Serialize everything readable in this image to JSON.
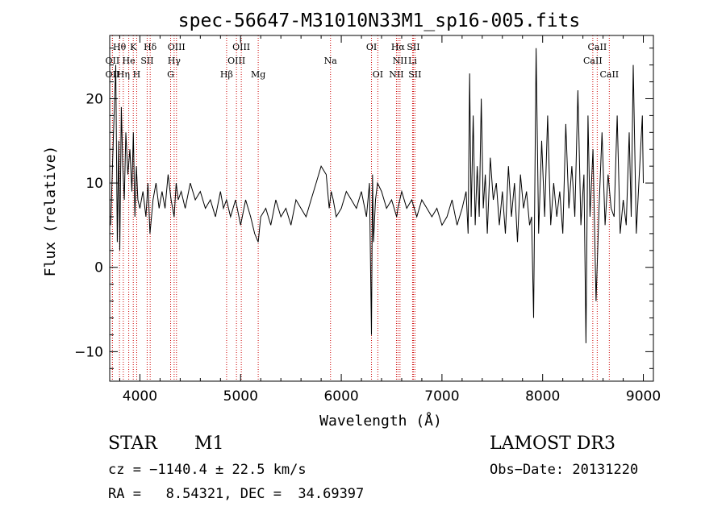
{
  "chart_data": {
    "type": "line",
    "title": "spec-56647-M31010N33M1_sp16-005.fits",
    "xlabel": "Wavelength (Å)",
    "ylabel": "Flux (relative)",
    "xlim": [
      3700,
      9100
    ],
    "ylim": [
      -13.5,
      27.5
    ],
    "xticks": [
      4000,
      5000,
      6000,
      7000,
      8000,
      9000
    ],
    "yticks": [
      -10,
      0,
      10,
      20
    ],
    "xtick_labels": [
      "4000",
      "5000",
      "6000",
      "7000",
      "8000",
      "9000"
    ],
    "ytick_labels": [
      "−10",
      "0",
      "10",
      "20"
    ],
    "line_color": "#000000",
    "marker_color": "#cc0000",
    "spectrum": {
      "x": [
        3710,
        3735,
        3760,
        3775,
        3790,
        3800,
        3815,
        3830,
        3845,
        3860,
        3880,
        3900,
        3920,
        3935,
        3950,
        3965,
        3980,
        4000,
        4030,
        4060,
        4080,
        4100,
        4130,
        4160,
        4190,
        4220,
        4250,
        4280,
        4310,
        4340,
        4360,
        4380,
        4410,
        4450,
        4500,
        4550,
        4600,
        4650,
        4700,
        4750,
        4800,
        4830,
        4860,
        4900,
        4950,
        5000,
        5050,
        5100,
        5140,
        5175,
        5200,
        5250,
        5300,
        5350,
        5400,
        5450,
        5500,
        5550,
        5600,
        5650,
        5700,
        5750,
        5800,
        5850,
        5880,
        5900,
        5920,
        5950,
        6000,
        6050,
        6100,
        6150,
        6200,
        6250,
        6280,
        6300,
        6310,
        6320,
        6340,
        6360,
        6400,
        6450,
        6500,
        6550,
        6563,
        6600,
        6650,
        6700,
        6750,
        6800,
        6850,
        6900,
        6950,
        7000,
        7050,
        7100,
        7150,
        7200,
        7240,
        7260,
        7275,
        7290,
        7310,
        7330,
        7350,
        7370,
        7390,
        7410,
        7430,
        7450,
        7480,
        7510,
        7540,
        7570,
        7600,
        7630,
        7660,
        7690,
        7720,
        7750,
        7780,
        7810,
        7840,
        7870,
        7890,
        7910,
        7935,
        7960,
        7990,
        8020,
        8050,
        8080,
        8110,
        8140,
        8170,
        8200,
        8230,
        8260,
        8290,
        8320,
        8350,
        8380,
        8410,
        8430,
        8450,
        8470,
        8500,
        8530,
        8560,
        8590,
        8620,
        8650,
        8680,
        8710,
        8740,
        8770,
        8800,
        8830,
        8860,
        8880,
        8900,
        8930,
        8960,
        8990,
        9000
      ],
      "y": [
        5,
        15,
        24,
        3,
        15,
        2,
        19,
        12,
        8,
        16,
        11,
        14,
        9,
        16,
        6,
        12,
        8,
        7,
        9,
        6,
        10,
        4,
        8,
        10,
        7,
        9,
        7,
        11,
        8,
        6,
        10,
        8,
        9,
        7,
        10,
        8,
        9,
        7,
        8,
        6,
        9,
        7,
        8,
        6,
        8,
        5,
        8,
        6,
        4,
        3,
        6,
        7,
        5,
        8,
        6,
        7,
        5,
        8,
        7,
        6,
        8,
        10,
        12,
        11,
        7,
        9,
        8,
        6,
        7,
        9,
        8,
        7,
        9,
        6,
        10,
        -8,
        11,
        3,
        8,
        10,
        9,
        7,
        8,
        6,
        7,
        9,
        7,
        8,
        6,
        8,
        7,
        6,
        7,
        5,
        6,
        8,
        5,
        7,
        9,
        4,
        23,
        6,
        18,
        5,
        12,
        6,
        20,
        7,
        11,
        4,
        13,
        8,
        10,
        5,
        9,
        4,
        12,
        6,
        10,
        3,
        11,
        7,
        9,
        5,
        6,
        -6,
        26,
        4,
        15,
        6,
        18,
        5,
        10,
        6,
        9,
        4,
        17,
        7,
        12,
        6,
        21,
        5,
        11,
        -9,
        18,
        6,
        14,
        -4,
        7,
        16,
        5,
        11,
        7,
        6,
        18,
        4,
        8,
        5,
        16,
        6,
        24,
        4,
        11,
        18,
        10
      ]
    },
    "lines": [
      {
        "name": "Hθ",
        "x": 3797,
        "row": 1
      },
      {
        "name": "K",
        "x": 3934,
        "row": 1
      },
      {
        "name": "Hδ",
        "x": 4102,
        "row": 1
      },
      {
        "name": "OIII",
        "x": 4363,
        "row": 1
      },
      {
        "name": "OIII",
        "x": 5007,
        "row": 1
      },
      {
        "name": "OI",
        "x": 6300,
        "row": 1
      },
      {
        "name": "Hα",
        "x": 6563,
        "row": 1
      },
      {
        "name": "SII",
        "x": 6716,
        "row": 1
      },
      {
        "name": "CaII",
        "x": 8542,
        "row": 1
      },
      {
        "name": "OII",
        "x": 3727,
        "row": 2
      },
      {
        "name": "He",
        "x": 3889,
        "row": 2
      },
      {
        "name": "SII",
        "x": 4072,
        "row": 2
      },
      {
        "name": "Hγ",
        "x": 4340,
        "row": 2
      },
      {
        "name": "OIII",
        "x": 4959,
        "row": 2
      },
      {
        "name": "Na",
        "x": 5893,
        "row": 2
      },
      {
        "name": "NII",
        "x": 6583,
        "row": 2
      },
      {
        "name": "Li",
        "x": 6708,
        "row": 2
      },
      {
        "name": "CaII",
        "x": 8498,
        "row": 2
      },
      {
        "name": "OII",
        "x": 3727,
        "row": 3
      },
      {
        "name": "Hη",
        "x": 3835,
        "row": 3
      },
      {
        "name": "H",
        "x": 3968,
        "row": 3
      },
      {
        "name": "G",
        "x": 4305,
        "row": 3
      },
      {
        "name": "Hβ",
        "x": 4861,
        "row": 3
      },
      {
        "name": "Mg",
        "x": 5175,
        "row": 3
      },
      {
        "name": "OI",
        "x": 6363,
        "row": 3
      },
      {
        "name": "NII",
        "x": 6548,
        "row": 3
      },
      {
        "name": "SII",
        "x": 6731,
        "row": 3
      },
      {
        "name": "CaII",
        "x": 8662,
        "row": 3
      }
    ]
  },
  "info": {
    "object_class": "STAR",
    "subclass": "M1",
    "survey": "LAMOST DR3",
    "cz": "cz = −1140.4 ± 22.5 km/s",
    "obs_date": "Obs−Date: 20131220",
    "coords": "RA =   8.54321, DEC =  34.69397"
  }
}
